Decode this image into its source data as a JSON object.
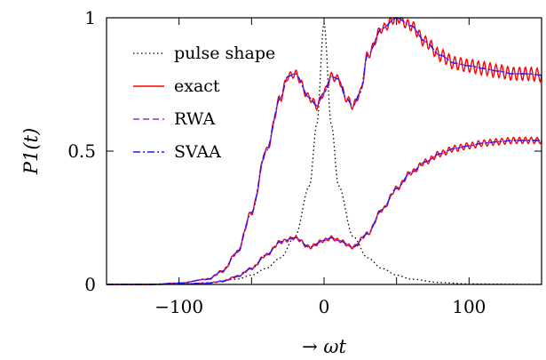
{
  "chart_data": {
    "type": "line",
    "xlabel": "→ ωt",
    "ylabel": "P1(t)",
    "xlim": [
      -150,
      150
    ],
    "ylim": [
      0,
      1
    ],
    "x_ticks": [
      -100,
      0,
      100
    ],
    "x_tick_labels": [
      "−100",
      "0",
      "100"
    ],
    "y_ticks": [
      0,
      0.5,
      1
    ],
    "y_tick_labels": [
      "0",
      "0.5",
      "1"
    ],
    "grid": false,
    "legend_position": "top-left",
    "series": [
      {
        "name": "pulse shape",
        "color": "#000000",
        "style": "dotted",
        "x": [
          -150,
          -120,
          -100,
          -80,
          -60,
          -50,
          -40,
          -30,
          -20,
          -10,
          -5,
          0,
          5,
          10,
          20,
          30,
          40,
          50,
          60,
          80,
          100,
          120,
          150
        ],
        "y": [
          0.0,
          0.001,
          0.002,
          0.006,
          0.02,
          0.035,
          0.06,
          0.1,
          0.18,
          0.37,
          0.6,
          0.98,
          0.6,
          0.37,
          0.18,
          0.1,
          0.06,
          0.035,
          0.02,
          0.007,
          0.002,
          0.001,
          0.0
        ]
      },
      {
        "name": "exact",
        "color": "#ff0000",
        "style": "solid",
        "x": [
          -150,
          -120,
          -100,
          -80,
          -70,
          -60,
          -50,
          -40,
          -30,
          -25,
          -20,
          -10,
          -5,
          0,
          5,
          10,
          15,
          20,
          25,
          30,
          40,
          50,
          60,
          70,
          80,
          90,
          100,
          110,
          120,
          130,
          140,
          150
        ],
        "y": [
          0.0,
          0.0,
          0.005,
          0.02,
          0.05,
          0.12,
          0.27,
          0.5,
          0.7,
          0.78,
          0.79,
          0.7,
          0.67,
          0.72,
          0.78,
          0.77,
          0.7,
          0.67,
          0.72,
          0.86,
          0.96,
          1.0,
          0.97,
          0.91,
          0.86,
          0.83,
          0.82,
          0.81,
          0.8,
          0.79,
          0.79,
          0.785
        ]
      },
      {
        "name": "RWA",
        "color": "#9b30c0",
        "style": "dashed",
        "x": [
          -150,
          -120,
          -100,
          -80,
          -70,
          -60,
          -50,
          -40,
          -30,
          -25,
          -20,
          -10,
          -5,
          0,
          5,
          10,
          15,
          20,
          25,
          30,
          40,
          50,
          60,
          70,
          80,
          90,
          100,
          110,
          120,
          130,
          140,
          150
        ],
        "y": [
          0.0,
          0.0,
          0.005,
          0.02,
          0.05,
          0.12,
          0.27,
          0.5,
          0.7,
          0.78,
          0.79,
          0.7,
          0.67,
          0.72,
          0.78,
          0.77,
          0.7,
          0.67,
          0.72,
          0.86,
          0.96,
          1.0,
          0.97,
          0.91,
          0.86,
          0.83,
          0.82,
          0.81,
          0.8,
          0.79,
          0.79,
          0.785
        ]
      },
      {
        "name": "SVAA",
        "color": "#1a1aff",
        "style": "dashdot",
        "x": [
          -150,
          -120,
          -100,
          -80,
          -70,
          -60,
          -50,
          -40,
          -30,
          -25,
          -20,
          -10,
          -5,
          0,
          5,
          10,
          15,
          20,
          25,
          30,
          40,
          50,
          60,
          70,
          80,
          90,
          100,
          110,
          120,
          130,
          140,
          150
        ],
        "y": [
          0.0,
          0.0,
          0.005,
          0.02,
          0.05,
          0.12,
          0.27,
          0.5,
          0.7,
          0.78,
          0.79,
          0.7,
          0.67,
          0.72,
          0.78,
          0.77,
          0.7,
          0.67,
          0.72,
          0.86,
          0.96,
          1.0,
          0.97,
          0.91,
          0.86,
          0.83,
          0.82,
          0.81,
          0.8,
          0.79,
          0.79,
          0.785
        ]
      }
    ],
    "lower_branch": {
      "x": [
        -150,
        -120,
        -100,
        -80,
        -70,
        -60,
        -50,
        -40,
        -30,
        -20,
        -10,
        0,
        5,
        10,
        20,
        30,
        40,
        50,
        60,
        70,
        80,
        90,
        100,
        110,
        120,
        130,
        140,
        150
      ],
      "y": [
        0.0,
        0.0,
        0.001,
        0.005,
        0.012,
        0.03,
        0.06,
        0.11,
        0.16,
        0.175,
        0.14,
        0.165,
        0.175,
        0.165,
        0.14,
        0.19,
        0.28,
        0.36,
        0.42,
        0.46,
        0.49,
        0.51,
        0.52,
        0.53,
        0.535,
        0.54,
        0.54,
        0.54
      ]
    }
  }
}
